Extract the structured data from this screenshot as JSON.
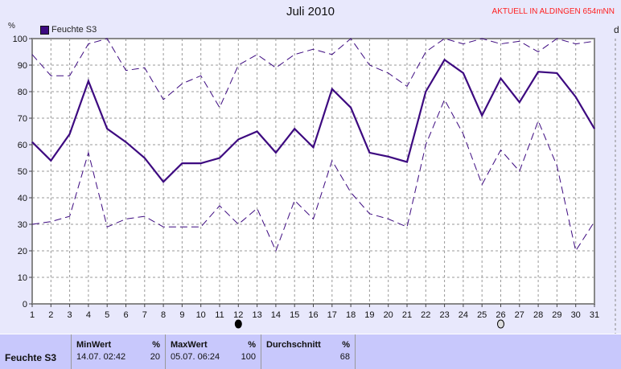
{
  "header": {
    "title": "Juli 2010",
    "note": "AKTUELL IN ALDINGEN 654mNN",
    "unit_left": "%",
    "unit_right": "d"
  },
  "legend": {
    "label": "Feuchte S3",
    "color": "#3d0a80"
  },
  "chart_data": {
    "type": "line",
    "title": "Juli 2010",
    "ylabel": "%",
    "ylim": [
      0,
      100
    ],
    "xlim": [
      1,
      31
    ],
    "grid": true,
    "legend_placement": "top-left",
    "x": [
      1,
      2,
      3,
      4,
      5,
      6,
      7,
      8,
      9,
      10,
      11,
      12,
      13,
      14,
      15,
      16,
      17,
      18,
      19,
      20,
      21,
      22,
      23,
      24,
      25,
      26,
      27,
      28,
      29,
      30,
      31
    ],
    "yticks": [
      0,
      10,
      20,
      30,
      40,
      50,
      60,
      70,
      80,
      90,
      100
    ],
    "series": [
      {
        "name": "Feuchte S3",
        "style": "solid",
        "color": "#3d0a80",
        "values": [
          61,
          54,
          64,
          84,
          66,
          61,
          55,
          46,
          53,
          53,
          55,
          62,
          65,
          57,
          66,
          59,
          81,
          74,
          57,
          55.5,
          53.5,
          80,
          92,
          87,
          71,
          85,
          76,
          87.5,
          87,
          78,
          66
        ]
      },
      {
        "style": "dashed",
        "color": "#3d0a80",
        "values": [
          94,
          86,
          86,
          98,
          100,
          88,
          89,
          77,
          83,
          86,
          74,
          90,
          94,
          89,
          94,
          96,
          94,
          100,
          90,
          87,
          82,
          95,
          100,
          98,
          100,
          98,
          99,
          95,
          100,
          98,
          99
        ]
      },
      {
        "style": "dashed",
        "color": "#3d0a80",
        "values": [
          30,
          31,
          33,
          57,
          29,
          32,
          33,
          29,
          29,
          29,
          37,
          30,
          36,
          20,
          39,
          32,
          54,
          42,
          34,
          32,
          29,
          60,
          77,
          64,
          45,
          58,
          50,
          69,
          52,
          20,
          31
        ]
      }
    ],
    "markers": [
      {
        "x": 12,
        "icon": "full-moon-filled-icon"
      },
      {
        "x": 26,
        "icon": "open-moon-icon"
      }
    ]
  },
  "table": {
    "row_label": "Feuchte S3",
    "min": {
      "header": "MinWert",
      "unit": "%",
      "date": "14.07.  02:42",
      "value": "20"
    },
    "max": {
      "header": "MaxWert",
      "unit": "%",
      "date": "05.07.  06:24",
      "value": "100"
    },
    "avg": {
      "header": "Durchschnitt",
      "unit": "%",
      "value": "68"
    }
  }
}
